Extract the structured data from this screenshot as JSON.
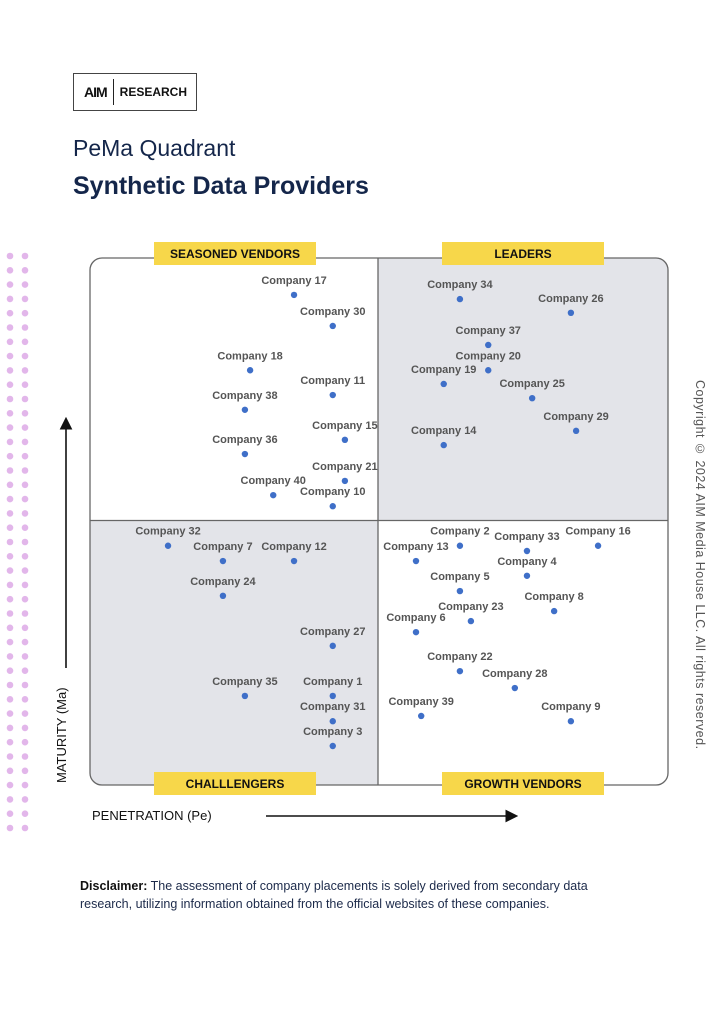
{
  "logo": {
    "mark": "AIM",
    "text": "RESEARCH"
  },
  "title": "PeMa Quadrant",
  "subtitle": "Synthetic Data Providers",
  "copyright": "Copyright © 2024 AIM Media House LLC. All rights reserved.",
  "disclaimer": {
    "label": "Disclaimer:",
    "text": " The assessment of company placements is solely derived from secondary data research, utilizing information obtained from the official websites of these companies."
  },
  "colors": {
    "dot": "#3f6fc8",
    "quadrant_label_bg": "#f7d74a",
    "shaded_quadrant": "#e3e4e9",
    "decor_dots": "#e2b6ea",
    "title": "#14264a"
  },
  "chart_data": {
    "type": "scatter",
    "xlabel": "PENETRATION (Pe)",
    "ylabel": "MATURITY (Ma)",
    "xlim": [
      0,
      100
    ],
    "ylim": [
      0,
      100
    ],
    "grid": false,
    "quadrants": {
      "top_left": "SEASONED VENDORS",
      "top_right": "LEADERS",
      "bottom_left": "CHALLLENGERS",
      "bottom_right": "GROWTH VENDORS"
    },
    "points": [
      {
        "label": "Company 17",
        "x": 35.3,
        "y": 93.0
      },
      {
        "label": "Company 30",
        "x": 42.0,
        "y": 87.1
      },
      {
        "label": "Company 18",
        "x": 27.7,
        "y": 78.7
      },
      {
        "label": "Company 11",
        "x": 42.0,
        "y": 74.0
      },
      {
        "label": "Company 38",
        "x": 26.8,
        "y": 71.2
      },
      {
        "label": "Company 15",
        "x": 44.1,
        "y": 65.5
      },
      {
        "label": "Company 36",
        "x": 26.8,
        "y": 62.8
      },
      {
        "label": "Company 21",
        "x": 44.1,
        "y": 57.7
      },
      {
        "label": "Company 40",
        "x": 31.7,
        "y": 55.0
      },
      {
        "label": "Company 10",
        "x": 42.0,
        "y": 52.9
      },
      {
        "label": "Company 34",
        "x": 64.0,
        "y": 92.2
      },
      {
        "label": "Company 26",
        "x": 83.2,
        "y": 89.6
      },
      {
        "label": "Company 37",
        "x": 68.9,
        "y": 83.5
      },
      {
        "label": "Company 20",
        "x": 68.9,
        "y": 78.7
      },
      {
        "label": "Company 19",
        "x": 61.2,
        "y": 76.1
      },
      {
        "label": "Company 25",
        "x": 76.5,
        "y": 73.4
      },
      {
        "label": "Company 29",
        "x": 84.1,
        "y": 67.2
      },
      {
        "label": "Company 14",
        "x": 61.2,
        "y": 64.5
      },
      {
        "label": "Company 32",
        "x": 13.5,
        "y": 45.4
      },
      {
        "label": "Company 7",
        "x": 23.0,
        "y": 42.5
      },
      {
        "label": "Company 12",
        "x": 35.3,
        "y": 42.5
      },
      {
        "label": "Company 24",
        "x": 23.0,
        "y": 35.9
      },
      {
        "label": "Company 27",
        "x": 42.0,
        "y": 26.4
      },
      {
        "label": "Company 35",
        "x": 26.8,
        "y": 16.9
      },
      {
        "label": "Company 1",
        "x": 42.0,
        "y": 16.9
      },
      {
        "label": "Company 31",
        "x": 42.0,
        "y": 12.1
      },
      {
        "label": "Company 3",
        "x": 42.0,
        "y": 7.4
      },
      {
        "label": "Company 2",
        "x": 64.0,
        "y": 45.4
      },
      {
        "label": "Company 33",
        "x": 75.6,
        "y": 44.4
      },
      {
        "label": "Company 16",
        "x": 87.9,
        "y": 45.4
      },
      {
        "label": "Company 13",
        "x": 56.4,
        "y": 42.5
      },
      {
        "label": "Company 4",
        "x": 75.6,
        "y": 39.7
      },
      {
        "label": "Company 5",
        "x": 64.0,
        "y": 36.8
      },
      {
        "label": "Company 8",
        "x": 80.3,
        "y": 33.0
      },
      {
        "label": "Company 23",
        "x": 65.9,
        "y": 31.1
      },
      {
        "label": "Company 6",
        "x": 56.4,
        "y": 29.0
      },
      {
        "label": "Company 22",
        "x": 64.0,
        "y": 21.6
      },
      {
        "label": "Company 28",
        "x": 73.5,
        "y": 18.4
      },
      {
        "label": "Company 39",
        "x": 57.3,
        "y": 13.1
      },
      {
        "label": "Company 9",
        "x": 83.2,
        "y": 12.1
      }
    ]
  }
}
